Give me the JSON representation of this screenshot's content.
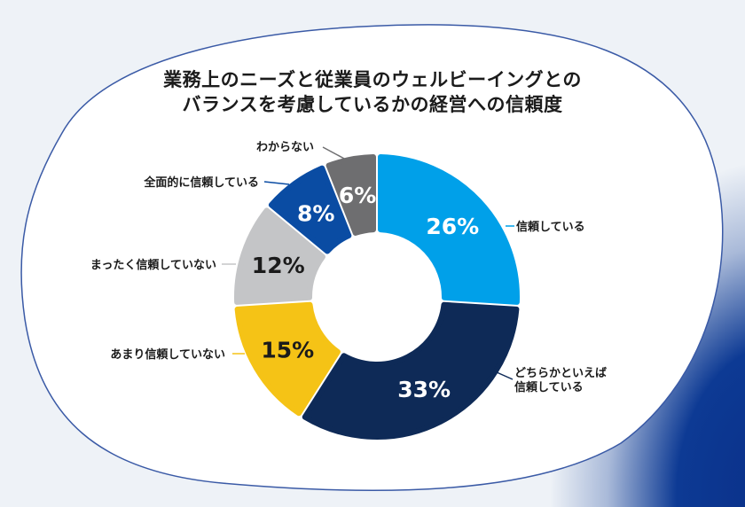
{
  "chart_data": {
    "type": "pie",
    "subtype": "donut",
    "title_lines": [
      "業務上のニーズと従業員のウェルビーイングとの",
      "バランスを考慮しているかの経営への信頼度"
    ],
    "start": "top, clockwise",
    "slices": [
      {
        "label": [
          "信頼している"
        ],
        "value": 26,
        "text": "26%",
        "color": "#00a0e9",
        "text_color": "#ffffff"
      },
      {
        "label": [
          "どちらかといえば",
          "信頼している"
        ],
        "value": 33,
        "text": "33%",
        "color": "#0e2a57",
        "text_color": "#ffffff"
      },
      {
        "label": [
          "あまり信頼していない"
        ],
        "value": 15,
        "text": "15%",
        "color": "#f5c316",
        "text_color": "#1b1b1b"
      },
      {
        "label": [
          "まったく信頼していない"
        ],
        "value": 12,
        "text": "12%",
        "color": "#c4c5c7",
        "text_color": "#1b1b1b"
      },
      {
        "label": [
          "全面的に信頼している"
        ],
        "value": 8,
        "text": "8%",
        "color": "#0a4ca3",
        "text_color": "#ffffff"
      },
      {
        "label": [
          "わからない"
        ],
        "value": 6,
        "text": "6%",
        "color": "#6e6e70",
        "text_color": "#ffffff"
      }
    ]
  }
}
